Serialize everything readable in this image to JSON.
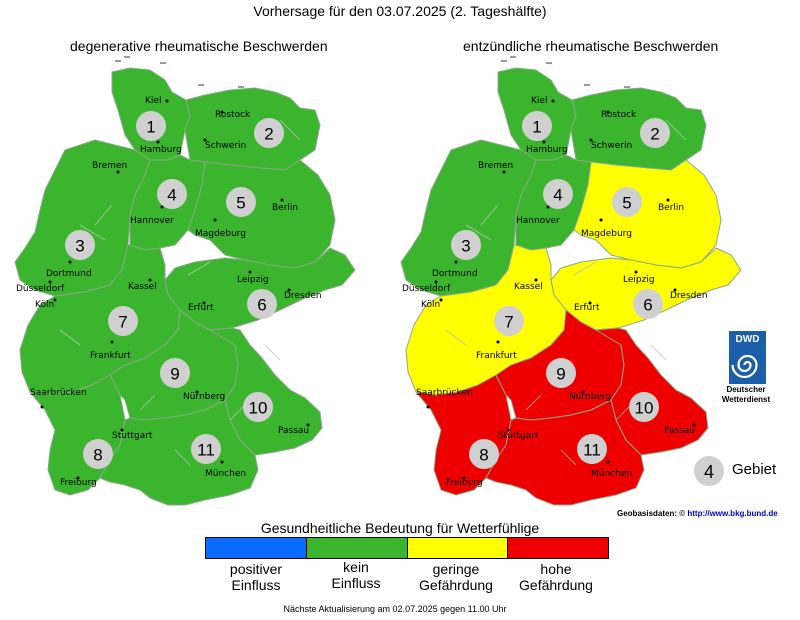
{
  "title": "Vorhersage für den 03.07.2025 (2. Tageshälfte)",
  "maps": [
    {
      "title": "degenerative rheumatische Beschwerden",
      "zones": [
        {
          "num": "1",
          "level": "kein Einfluss"
        },
        {
          "num": "2",
          "level": "kein Einfluss"
        },
        {
          "num": "3",
          "level": "kein Einfluss"
        },
        {
          "num": "4",
          "level": "kein Einfluss"
        },
        {
          "num": "5",
          "level": "kein Einfluss"
        },
        {
          "num": "6",
          "level": "kein Einfluss"
        },
        {
          "num": "7",
          "level": "kein Einfluss"
        },
        {
          "num": "8",
          "level": "kein Einfluss"
        },
        {
          "num": "9",
          "level": "kein Einfluss"
        },
        {
          "num": "10",
          "level": "kein Einfluss"
        },
        {
          "num": "11",
          "level": "kein Einfluss"
        }
      ]
    },
    {
      "title": "entzündliche rheumatische Beschwerden",
      "zones": [
        {
          "num": "1",
          "level": "kein Einfluss"
        },
        {
          "num": "2",
          "level": "kein Einfluss"
        },
        {
          "num": "3",
          "level": "kein Einfluss"
        },
        {
          "num": "4",
          "level": "kein Einfluss"
        },
        {
          "num": "5",
          "level": "geringe Gefährdung"
        },
        {
          "num": "6",
          "level": "geringe Gefährdung"
        },
        {
          "num": "7",
          "level": "geringe Gefährdung"
        },
        {
          "num": "8",
          "level": "hohe Gefährdung"
        },
        {
          "num": "9",
          "level": "hohe Gefährdung"
        },
        {
          "num": "10",
          "level": "hohe Gefährdung"
        },
        {
          "num": "11",
          "level": "hohe Gefährdung"
        }
      ]
    }
  ],
  "cities": [
    "Kiel",
    "Rostock",
    "Hamburg",
    "Schwerin",
    "Bremen",
    "Hannover",
    "Berlin",
    "Magdeburg",
    "Dortmund",
    "Düsseldorf",
    "Köln",
    "Kassel",
    "Leipzig",
    "Dresden",
    "Erfurt",
    "Frankfurt",
    "Saarbrücken",
    "Nürnberg",
    "Passau",
    "Stuttgart",
    "Freiburg",
    "München"
  ],
  "legend": {
    "title": "Gesundheitliche Bedeutung für Wetterfühlige",
    "items": [
      {
        "line1": "positiver",
        "line2": "Einfluss",
        "color": "#0a6cff"
      },
      {
        "line1": "kein",
        "line2": "Einfluss",
        "color": "#3cb52e"
      },
      {
        "line1": "geringe",
        "line2": "Gefährdung",
        "color": "#ffff00"
      },
      {
        "line1": "hohe",
        "line2": "Gefährdung",
        "color": "#ee0000"
      }
    ]
  },
  "gebiet": {
    "num": "4",
    "label": "Gebiet"
  },
  "dwd": {
    "logo": "DWD",
    "line1": "Deutscher",
    "line2": "Wetterdienst"
  },
  "geo": {
    "label": "Geobasisdaten: ©",
    "link": "http://www.bkg.bund.de"
  },
  "footer": "Nächste Aktualisierung am 02.07.2025 gegen 11.00 Uhr"
}
